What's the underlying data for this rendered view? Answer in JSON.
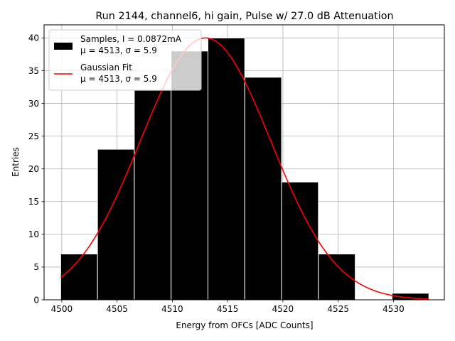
{
  "chart_data": {
    "type": "bar",
    "title": "Run 2144, channel6, hi gain, Pulse w/ 27.0 dB Attenuation",
    "xlabel": "Energy from OFCs [ADC Counts]",
    "ylabel": "Entries",
    "xlim": [
      4498.4,
      4534.6
    ],
    "ylim": [
      0,
      42
    ],
    "xticks": [
      4500,
      4505,
      4510,
      4515,
      4520,
      4525,
      4530
    ],
    "yticks": [
      0,
      5,
      10,
      15,
      20,
      25,
      30,
      35,
      40
    ],
    "grid": true,
    "legend_position": "top-left",
    "histogram": {
      "name": "Samples, I = 0.0872mA",
      "name_line2": "μ = 4513, σ = 5.9",
      "color": "#000000",
      "bin_edges": [
        4499.9,
        4503.23,
        4506.56,
        4509.89,
        4513.22,
        4516.55,
        4519.88,
        4523.21,
        4526.54,
        4529.87,
        4533.2
      ],
      "counts": [
        7,
        23,
        32,
        38,
        40,
        34,
        18,
        7,
        0,
        1
      ]
    },
    "fit": {
      "name": "Gaussian Fit",
      "name_line2": "μ = 4513, σ = 5.9",
      "color": "#ff0000",
      "mu": 4513.0,
      "sigma": 5.9,
      "amplitude": 40.0,
      "x_range": [
        4499.9,
        4533.2
      ]
    }
  }
}
